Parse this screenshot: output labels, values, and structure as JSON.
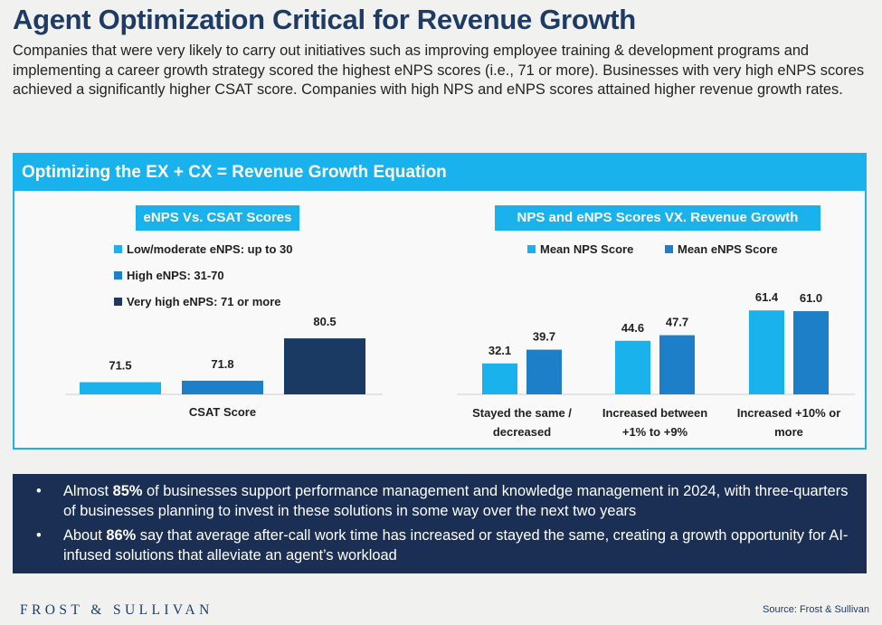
{
  "title": "Agent Optimization Critical for Revenue Growth",
  "intro": "Companies that were very likely to carry out initiatives such as improving employee training & development programs and implementing a career growth strategy scored the highest eNPS scores (i.e., 71 or more). Businesses with very high eNPS scores achieved a significantly higher CSAT score. Companies with high NPS and eNPS scores attained higher revenue growth rates.",
  "panel_title": "Optimizing the EX + CX = Revenue Growth Equation",
  "colors": {
    "light": "#19b2ec",
    "mid": "#1c7fc8",
    "dark": "#1b3a63"
  },
  "chart_data": [
    {
      "type": "bar",
      "title": "eNPS Vs. CSAT Scores",
      "categories": [
        "CSAT Score"
      ],
      "series": [
        {
          "name": "Low/moderate eNPS: up to 30",
          "values": [
            71.5
          ],
          "label": "71.5"
        },
        {
          "name": "High eNPS: 31-70",
          "values": [
            71.8
          ],
          "label": "71.8"
        },
        {
          "name": "Very high eNPS: 71 or more",
          "values": [
            80.5
          ],
          "label": "80.5"
        }
      ],
      "xlabel": "",
      "ylabel": "",
      "ylim": [
        69,
        82
      ],
      "grid": false,
      "legend": "top-left"
    },
    {
      "type": "bar",
      "title": "NPS and eNPS Scores VX. Revenue Growth",
      "categories": [
        [
          "Stayed the same /",
          "decreased"
        ],
        [
          "Increased between",
          "+1% to +9%"
        ],
        [
          "Increased +10% or",
          "more"
        ]
      ],
      "series": [
        {
          "name": "Mean NPS Score",
          "values": [
            32.1,
            44.6,
            61.4
          ],
          "labels": [
            "32.1",
            "44.6",
            "61.4"
          ]
        },
        {
          "name": "Mean eNPS Score",
          "values": [
            39.7,
            47.7,
            61.0
          ],
          "labels": [
            "39.7",
            "47.7",
            "61.0"
          ]
        }
      ],
      "xlabel": "",
      "ylabel": "",
      "ylim": [
        15,
        65
      ],
      "grid": false,
      "legend": "top"
    }
  ],
  "bullets": [
    {
      "prefix": "Almost ",
      "highlight": "85%",
      "text": " of businesses support performance management and knowledge management in 2024, with three-quarters of businesses planning to invest in these solutions in some way over the next two years"
    },
    {
      "prefix": "About ",
      "highlight": "86%",
      "text": " say that average after-call work time has increased or stayed the same, creating a growth opportunity for AI-infused solutions that alleviate an agent’s workload"
    }
  ],
  "logo": "FROST & SULLIVAN",
  "source": "Source: Frost & Sullivan"
}
